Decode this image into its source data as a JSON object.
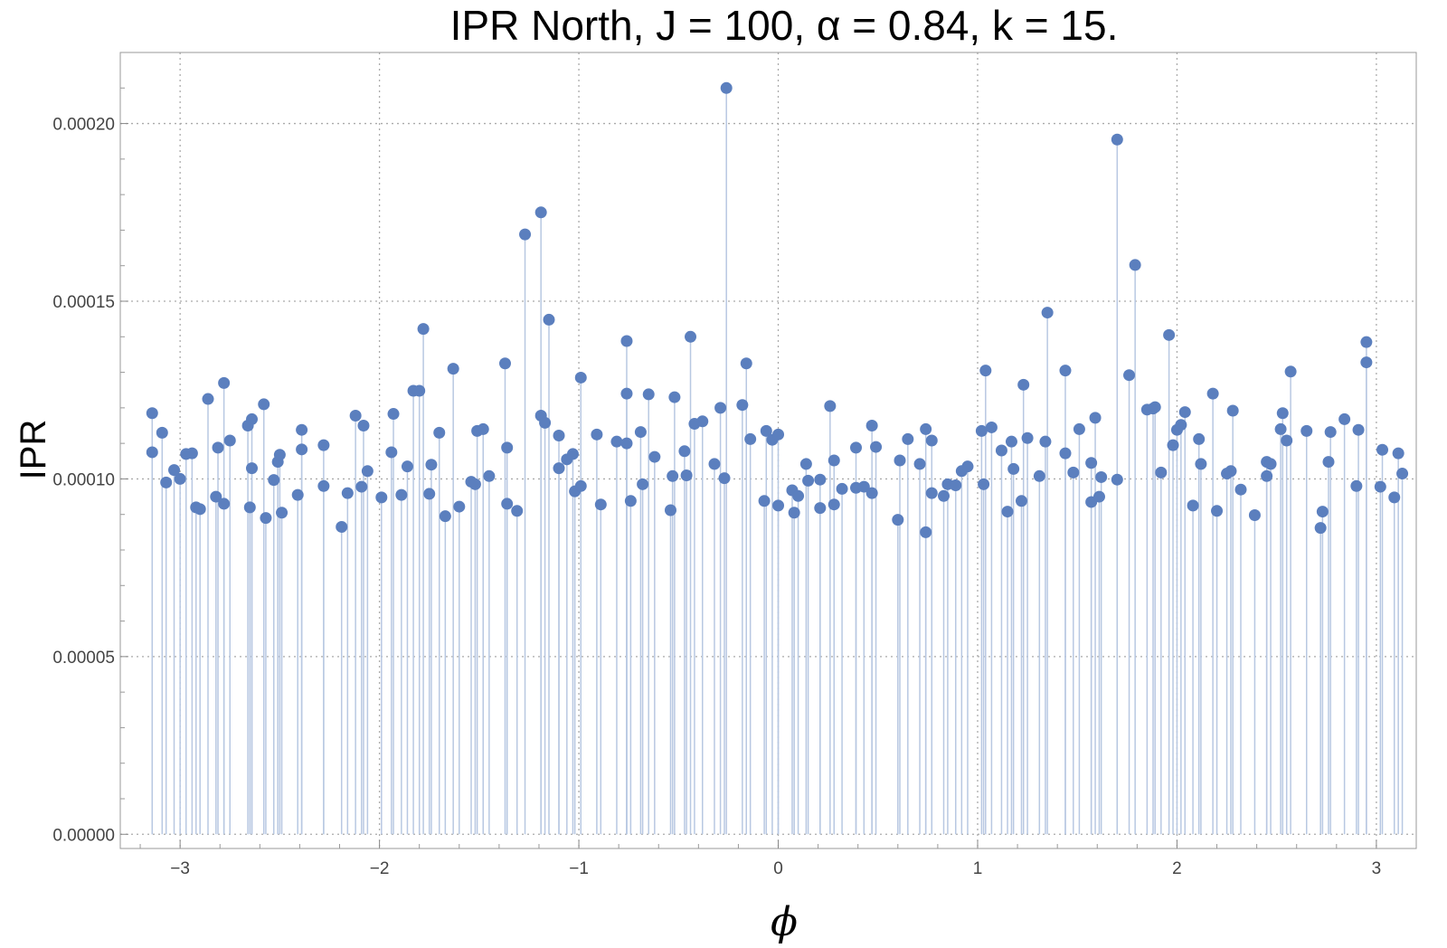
{
  "chart_data": {
    "type": "scatter",
    "style": "stem",
    "title": "IPR North, J = 100, α = 0.84, k = 15.",
    "xlabel": "ϕ",
    "ylabel": "IPR",
    "xlim": [
      -3.3,
      3.2
    ],
    "ylim": [
      -4e-06,
      0.00022
    ],
    "grid": true,
    "point_color": "#5b7fbe",
    "stem_color": "#b8c8e2",
    "x_ticks": [
      -3,
      -2,
      -1,
      0,
      1,
      2,
      3
    ],
    "x_tick_labels": [
      "−3",
      "−2",
      "−1",
      "0",
      "1",
      "2",
      "3"
    ],
    "y_ticks": [
      0,
      5e-05,
      0.0001,
      0.00015,
      0.0002
    ],
    "y_tick_labels": [
      "0.00000",
      "0.00005",
      "0.00010",
      "0.00015",
      "0.00020"
    ],
    "series": [
      {
        "points": [
          [
            -3.14,
            0.0001075
          ],
          [
            -3.14,
            0.0001185
          ],
          [
            -3.09,
            0.000113
          ],
          [
            -3.07,
            9.9e-05
          ],
          [
            -3.03,
            0.0001025
          ],
          [
            -3.0,
            0.0001
          ],
          [
            -2.97,
            0.000107
          ],
          [
            -2.94,
            0.0001072
          ],
          [
            -2.92,
            9.2e-05
          ],
          [
            -2.9,
            9.15e-05
          ],
          [
            -2.86,
            0.0001225
          ],
          [
            -2.82,
            9.5e-05
          ],
          [
            -2.81,
            0.0001088
          ],
          [
            -2.78,
            0.000127
          ],
          [
            -2.78,
            9.3e-05
          ],
          [
            -2.75,
            0.0001108
          ],
          [
            -2.66,
            0.000115
          ],
          [
            -2.65,
            9.2e-05
          ],
          [
            -2.64,
            0.0001168
          ],
          [
            -2.64,
            0.000103
          ],
          [
            -2.58,
            0.000121
          ],
          [
            -2.57,
            8.9e-05
          ],
          [
            -2.53,
            9.97e-05
          ],
          [
            -2.51,
            0.0001048
          ],
          [
            -2.5,
            0.0001068
          ],
          [
            -2.49,
            9.05e-05
          ],
          [
            -2.41,
            9.55e-05
          ],
          [
            -2.39,
            0.0001138
          ],
          [
            -2.39,
            0.0001083
          ],
          [
            -2.28,
            0.0001095
          ],
          [
            -2.28,
            9.8e-05
          ],
          [
            -2.19,
            8.65e-05
          ],
          [
            -2.16,
            9.6e-05
          ],
          [
            -2.12,
            0.0001178
          ],
          [
            -2.09,
            9.78e-05
          ],
          [
            -2.08,
            0.000115
          ],
          [
            -2.06,
            0.0001022
          ],
          [
            -1.99,
            9.48e-05
          ],
          [
            -1.94,
            0.0001075
          ],
          [
            -1.93,
            0.0001183
          ],
          [
            -1.89,
            9.55e-05
          ],
          [
            -1.86,
            0.0001035
          ],
          [
            -1.83,
            0.0001248
          ],
          [
            -1.8,
            0.0001248
          ],
          [
            -1.78,
            0.0001422
          ],
          [
            -1.75,
            9.58e-05
          ],
          [
            -1.74,
            0.000104
          ],
          [
            -1.7,
            0.000113
          ],
          [
            -1.67,
            8.95e-05
          ],
          [
            -1.63,
            0.000131
          ],
          [
            -1.6,
            9.22e-05
          ],
          [
            -1.54,
            9.92e-05
          ],
          [
            -1.52,
            9.85e-05
          ],
          [
            -1.51,
            0.0001135
          ],
          [
            -1.48,
            0.000114
          ],
          [
            -1.45,
            0.0001008
          ],
          [
            -1.37,
            0.0001325
          ],
          [
            -1.36,
            9.3e-05
          ],
          [
            -1.36,
            0.0001088
          ],
          [
            -1.31,
            9.1e-05
          ],
          [
            -1.27,
            0.0001688
          ],
          [
            -1.19,
            0.000175
          ],
          [
            -1.19,
            0.0001178
          ],
          [
            -1.17,
            0.0001158
          ],
          [
            -1.15,
            0.0001448
          ],
          [
            -1.1,
            0.0001122
          ],
          [
            -1.1,
            0.000103
          ],
          [
            -1.06,
            0.0001055
          ],
          [
            -1.03,
            0.000107
          ],
          [
            -1.02,
            9.65e-05
          ],
          [
            -0.99,
            0.0001285
          ],
          [
            -0.99,
            9.8e-05
          ],
          [
            -0.91,
            0.0001125
          ],
          [
            -0.89,
            9.28e-05
          ],
          [
            -0.81,
            0.0001105
          ],
          [
            -0.76,
            0.0001388
          ],
          [
            -0.76,
            0.000124
          ],
          [
            -0.76,
            0.00011
          ],
          [
            -0.74,
            9.38e-05
          ],
          [
            -0.69,
            0.0001132
          ],
          [
            -0.68,
            9.85e-05
          ],
          [
            -0.65,
            0.0001238
          ],
          [
            -0.62,
            0.0001062
          ],
          [
            -0.54,
            9.12e-05
          ],
          [
            -0.53,
            0.0001008
          ],
          [
            -0.52,
            0.000123
          ],
          [
            -0.47,
            0.0001078
          ],
          [
            -0.46,
            0.000101
          ],
          [
            -0.44,
            0.00014
          ],
          [
            -0.42,
            0.0001155
          ],
          [
            -0.38,
            0.0001162
          ],
          [
            -0.32,
            0.0001042
          ],
          [
            -0.29,
            0.00012
          ],
          [
            -0.27,
            0.0001002
          ],
          [
            -0.26,
            0.00021
          ],
          [
            -0.18,
            0.0001208
          ],
          [
            -0.16,
            0.0001325
          ],
          [
            -0.14,
            0.0001112
          ],
          [
            -0.07,
            9.38e-05
          ],
          [
            -0.06,
            0.0001135
          ],
          [
            -0.03,
            0.000111
          ],
          [
            0.0,
            0.0001125
          ],
          [
            0.0,
            9.25e-05
          ],
          [
            0.07,
            9.68e-05
          ],
          [
            0.08,
            9.05e-05
          ],
          [
            0.1,
            9.52e-05
          ],
          [
            0.14,
            0.0001042
          ],
          [
            0.15,
            9.95e-05
          ],
          [
            0.21,
            9.18e-05
          ],
          [
            0.21,
            9.98e-05
          ],
          [
            0.26,
            0.0001205
          ],
          [
            0.28,
            0.0001052
          ],
          [
            0.28,
            9.28e-05
          ],
          [
            0.32,
            9.72e-05
          ],
          [
            0.39,
            0.0001088
          ],
          [
            0.39,
            9.75e-05
          ],
          [
            0.43,
            9.78e-05
          ],
          [
            0.47,
            0.000115
          ],
          [
            0.47,
            9.6e-05
          ],
          [
            0.49,
            0.000109
          ],
          [
            0.6,
            8.85e-05
          ],
          [
            0.61,
            0.0001052
          ],
          [
            0.65,
            0.0001112
          ],
          [
            0.71,
            0.0001042
          ],
          [
            0.74,
            0.000114
          ],
          [
            0.74,
            8.5e-05
          ],
          [
            0.77,
            0.0001108
          ],
          [
            0.77,
            9.6e-05
          ],
          [
            0.83,
            9.52e-05
          ],
          [
            0.85,
            9.85e-05
          ],
          [
            0.89,
            9.82e-05
          ],
          [
            0.92,
            0.0001022
          ],
          [
            0.95,
            0.0001035
          ],
          [
            1.02,
            0.0001135
          ],
          [
            1.03,
            9.85e-05
          ],
          [
            1.04,
            0.0001305
          ],
          [
            1.07,
            0.0001145
          ],
          [
            1.12,
            0.000108
          ],
          [
            1.15,
            9.08e-05
          ],
          [
            1.17,
            0.0001105
          ],
          [
            1.18,
            0.0001028
          ],
          [
            1.22,
            9.38e-05
          ],
          [
            1.23,
            0.0001265
          ],
          [
            1.25,
            0.0001115
          ],
          [
            1.31,
            0.0001008
          ],
          [
            1.34,
            0.0001105
          ],
          [
            1.35,
            0.0001468
          ],
          [
            1.44,
            0.0001305
          ],
          [
            1.44,
            0.0001072
          ],
          [
            1.48,
            0.0001018
          ],
          [
            1.51,
            0.000114
          ],
          [
            1.57,
            0.0001045
          ],
          [
            1.57,
            9.35e-05
          ],
          [
            1.59,
            0.0001172
          ],
          [
            1.61,
            9.5e-05
          ],
          [
            1.62,
            0.0001005
          ],
          [
            1.7,
            0.0001955
          ],
          [
            1.7,
            9.98e-05
          ],
          [
            1.76,
            0.0001292
          ],
          [
            1.79,
            0.0001602
          ],
          [
            1.85,
            0.0001195
          ],
          [
            1.88,
            0.0001198
          ],
          [
            1.89,
            0.0001202
          ],
          [
            1.92,
            0.0001018
          ],
          [
            1.96,
            0.0001405
          ],
          [
            1.98,
            0.0001095
          ],
          [
            2.0,
            0.0001138
          ],
          [
            2.02,
            0.0001152
          ],
          [
            2.04,
            0.0001188
          ],
          [
            2.08,
            9.25e-05
          ],
          [
            2.11,
            0.0001112
          ],
          [
            2.12,
            0.0001042
          ],
          [
            2.18,
            0.000124
          ],
          [
            2.2,
            9.1e-05
          ],
          [
            2.25,
            0.0001015
          ],
          [
            2.27,
            0.0001022
          ],
          [
            2.28,
            0.0001192
          ],
          [
            2.32,
            9.7e-05
          ],
          [
            2.39,
            8.98e-05
          ],
          [
            2.45,
            0.0001048
          ],
          [
            2.45,
            0.0001008
          ],
          [
            2.47,
            0.0001042
          ],
          [
            2.52,
            0.000114
          ],
          [
            2.53,
            0.0001185
          ],
          [
            2.55,
            0.0001108
          ],
          [
            2.57,
            0.0001302
          ],
          [
            2.65,
            0.0001135
          ],
          [
            2.72,
            8.62e-05
          ],
          [
            2.73,
            9.08e-05
          ],
          [
            2.76,
            0.0001048
          ],
          [
            2.77,
            0.0001132
          ],
          [
            2.84,
            0.0001168
          ],
          [
            2.9,
            9.8e-05
          ],
          [
            2.91,
            0.0001138
          ],
          [
            2.95,
            0.0001385
          ],
          [
            2.95,
            0.0001328
          ],
          [
            3.02,
            9.78e-05
          ],
          [
            3.03,
            0.0001082
          ],
          [
            3.09,
            9.48e-05
          ],
          [
            3.11,
            0.0001072
          ],
          [
            3.13,
            0.0001015
          ]
        ]
      }
    ]
  }
}
